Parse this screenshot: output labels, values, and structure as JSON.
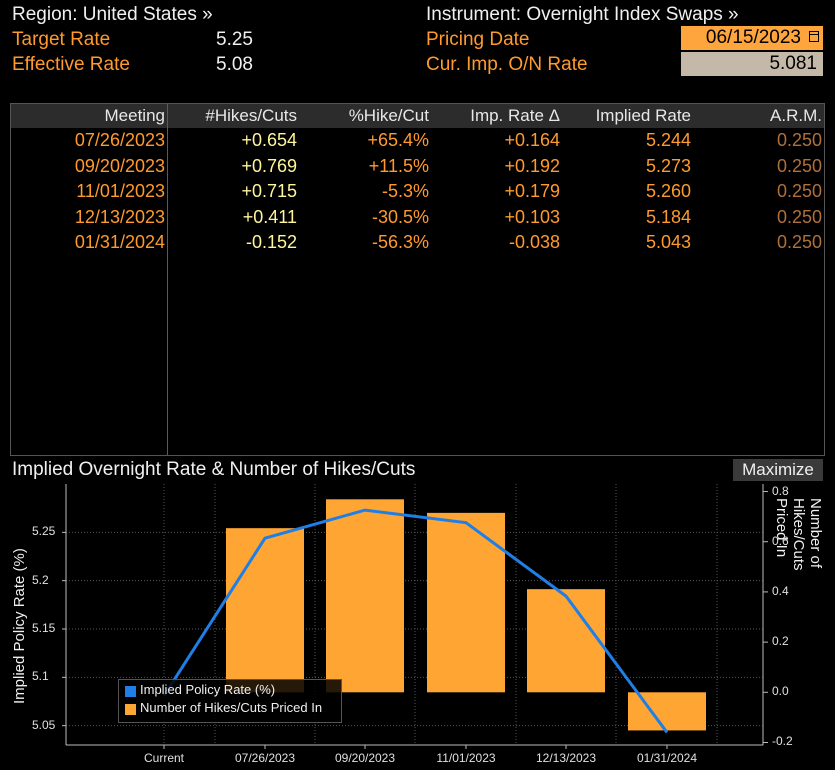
{
  "header": {
    "region_label": "Region: United States »",
    "instrument_label": "Instrument: Overnight Index Swaps »",
    "target_rate_label": "Target Rate",
    "target_rate_value": "5.25",
    "effective_rate_label": "Effective Rate",
    "effective_rate_value": "5.08",
    "pricing_date_label": "Pricing Date",
    "pricing_date_value": "06/15/2023",
    "onrate_label": "Cur. Imp. O/N Rate",
    "onrate_value": "5.081"
  },
  "table": {
    "columns": [
      "Meeting",
      "#Hikes/Cuts",
      "%Hike/Cut",
      "Imp. Rate Δ",
      "Implied Rate",
      "A.R.M."
    ],
    "rows": [
      [
        "07/26/2023",
        "+0.654",
        "+65.4%",
        "+0.164",
        "5.244",
        "0.250"
      ],
      [
        "09/20/2023",
        "+0.769",
        "+11.5%",
        "+0.192",
        "5.273",
        "0.250"
      ],
      [
        "11/01/2023",
        "+0.715",
        "-5.3%",
        "+0.179",
        "5.260",
        "0.250"
      ],
      [
        "12/13/2023",
        "+0.411",
        "-30.5%",
        "+0.103",
        "5.184",
        "0.250"
      ],
      [
        "01/31/2024",
        "-0.152",
        "-56.3%",
        "-0.038",
        "5.043",
        "0.250"
      ]
    ]
  },
  "chart": {
    "title": "Implied Overnight Rate & Number of Hikes/Cuts",
    "maximize_label": "Maximize"
  },
  "colors": {
    "line": "#1f7fe6",
    "bar": "#ffa533",
    "orange_text": "#ff9a2e",
    "arm_text": "#b0703a"
  },
  "chart_data": {
    "type": "bar",
    "categories": [
      "Current",
      "07/26/2023",
      "09/20/2023",
      "11/01/2023",
      "12/13/2023",
      "01/31/2024"
    ],
    "series": [
      {
        "name": "Implied Policy Rate (%)",
        "type": "line",
        "axis": "left",
        "values": [
          5.081,
          5.244,
          5.273,
          5.26,
          5.184,
          5.043
        ]
      },
      {
        "name": "Number of Hikes/Cuts Priced In",
        "type": "bar",
        "axis": "right",
        "values": [
          null,
          0.654,
          0.769,
          0.715,
          0.411,
          -0.152
        ]
      }
    ],
    "ylabel": "Implied Policy Rate (%)",
    "y2label": "Number of Hikes/Cuts Priced In",
    "ylim": [
      5.03,
      5.3
    ],
    "yticks": [
      "5.05",
      "5.1",
      "5.15",
      "5.2",
      "5.25"
    ],
    "y2lim": [
      -0.21,
      0.83
    ],
    "y2ticks": [
      "-0.2",
      "0.0",
      "0.2",
      "0.4",
      "0.6",
      "0.8"
    ],
    "grid": true,
    "legend": "bottom-left"
  }
}
